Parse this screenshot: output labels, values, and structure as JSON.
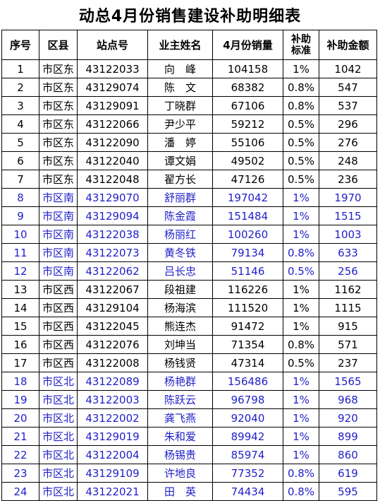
{
  "title": "动总4月份销售建设补助明细表",
  "headers": {
    "seq": "序号",
    "district": "区县",
    "station": "站点号",
    "owner": "业主姓名",
    "sales": "4月份销量",
    "standard_line1": "补助",
    "standard_line2": "标准",
    "amount": "补助金额"
  },
  "colors": {
    "black_text": "#000000",
    "blue_text": "#1f1fc8"
  },
  "rows": [
    {
      "seq": "1",
      "district": "市区东",
      "station": "43122033",
      "owner": "向　峰",
      "sales": "104158",
      "rate": "1%",
      "amount": "1042",
      "color": "black"
    },
    {
      "seq": "2",
      "district": "市区东",
      "station": "43129074",
      "owner": "陈　文",
      "sales": "68382",
      "rate": "0.8%",
      "amount": "547",
      "color": "black"
    },
    {
      "seq": "3",
      "district": "市区东",
      "station": "43129091",
      "owner": "丁晓群",
      "sales": "67106",
      "rate": "0.8%",
      "amount": "537",
      "color": "black"
    },
    {
      "seq": "4",
      "district": "市区东",
      "station": "43122066",
      "owner": "尹少平",
      "sales": "59212",
      "rate": "0.5%",
      "amount": "296",
      "color": "black"
    },
    {
      "seq": "5",
      "district": "市区东",
      "station": "43122090",
      "owner": "潘　婷",
      "sales": "55106",
      "rate": "0.5%",
      "amount": "276",
      "color": "black"
    },
    {
      "seq": "6",
      "district": "市区东",
      "station": "43122040",
      "owner": "谭文娟",
      "sales": "49502",
      "rate": "0.5%",
      "amount": "248",
      "color": "black"
    },
    {
      "seq": "7",
      "district": "市区东",
      "station": "43122048",
      "owner": "翟方长",
      "sales": "47126",
      "rate": "0.5%",
      "amount": "236",
      "color": "black"
    },
    {
      "seq": "8",
      "district": "市区南",
      "station": "43129070",
      "owner": "舒丽群",
      "sales": "197042",
      "rate": "1%",
      "amount": "1970",
      "color": "blue"
    },
    {
      "seq": "9",
      "district": "市区南",
      "station": "43129094",
      "owner": "陈金霞",
      "sales": "151484",
      "rate": "1%",
      "amount": "1515",
      "color": "blue"
    },
    {
      "seq": "10",
      "district": "市区南",
      "station": "43122038",
      "owner": "杨丽红",
      "sales": "100260",
      "rate": "1%",
      "amount": "1003",
      "color": "blue"
    },
    {
      "seq": "11",
      "district": "市区南",
      "station": "43122073",
      "owner": "黄冬铁",
      "sales": "79134",
      "rate": "0.8%",
      "amount": "633",
      "color": "blue"
    },
    {
      "seq": "12",
      "district": "市区南",
      "station": "43122062",
      "owner": "吕长忠",
      "sales": "51146",
      "rate": "0.5%",
      "amount": "256",
      "color": "blue"
    },
    {
      "seq": "13",
      "district": "市区西",
      "station": "43122067",
      "owner": "段祖建",
      "sales": "116226",
      "rate": "1%",
      "amount": "1162",
      "color": "black"
    },
    {
      "seq": "14",
      "district": "市区西",
      "station": "43129104",
      "owner": "杨海滨",
      "sales": "111520",
      "rate": "1%",
      "amount": "1115",
      "color": "black"
    },
    {
      "seq": "15",
      "district": "市区西",
      "station": "43122045",
      "owner": "熊连杰",
      "sales": "91472",
      "rate": "1%",
      "amount": "915",
      "color": "black"
    },
    {
      "seq": "16",
      "district": "市区西",
      "station": "43122076",
      "owner": "刘坤当",
      "sales": "71354",
      "rate": "0.8%",
      "amount": "571",
      "color": "black"
    },
    {
      "seq": "17",
      "district": "市区西",
      "station": "43122008",
      "owner": "杨钱贤",
      "sales": "47314",
      "rate": "0.5%",
      "amount": "237",
      "color": "black"
    },
    {
      "seq": "18",
      "district": "市区北",
      "station": "43122089",
      "owner": "杨艳群",
      "sales": "156486",
      "rate": "1%",
      "amount": "1565",
      "color": "blue"
    },
    {
      "seq": "19",
      "district": "市区北",
      "station": "43122003",
      "owner": "陈跃云",
      "sales": "96798",
      "rate": "1%",
      "amount": "968",
      "color": "blue"
    },
    {
      "seq": "20",
      "district": "市区北",
      "station": "43122002",
      "owner": "龚飞燕",
      "sales": "92040",
      "rate": "1%",
      "amount": "920",
      "color": "blue"
    },
    {
      "seq": "21",
      "district": "市区北",
      "station": "43129019",
      "owner": "朱和爱",
      "sales": "89942",
      "rate": "1%",
      "amount": "899",
      "color": "blue"
    },
    {
      "seq": "22",
      "district": "市区北",
      "station": "43122004",
      "owner": "杨锡贵",
      "sales": "85974",
      "rate": "1%",
      "amount": "860",
      "color": "blue"
    },
    {
      "seq": "23",
      "district": "市区北",
      "station": "43129109",
      "owner": "许地良",
      "sales": "77352",
      "rate": "0.8%",
      "amount": "619",
      "color": "blue"
    },
    {
      "seq": "24",
      "district": "市区北",
      "station": "43122021",
      "owner": "田　英",
      "sales": "74434",
      "rate": "0.8%",
      "amount": "595",
      "color": "blue"
    }
  ]
}
